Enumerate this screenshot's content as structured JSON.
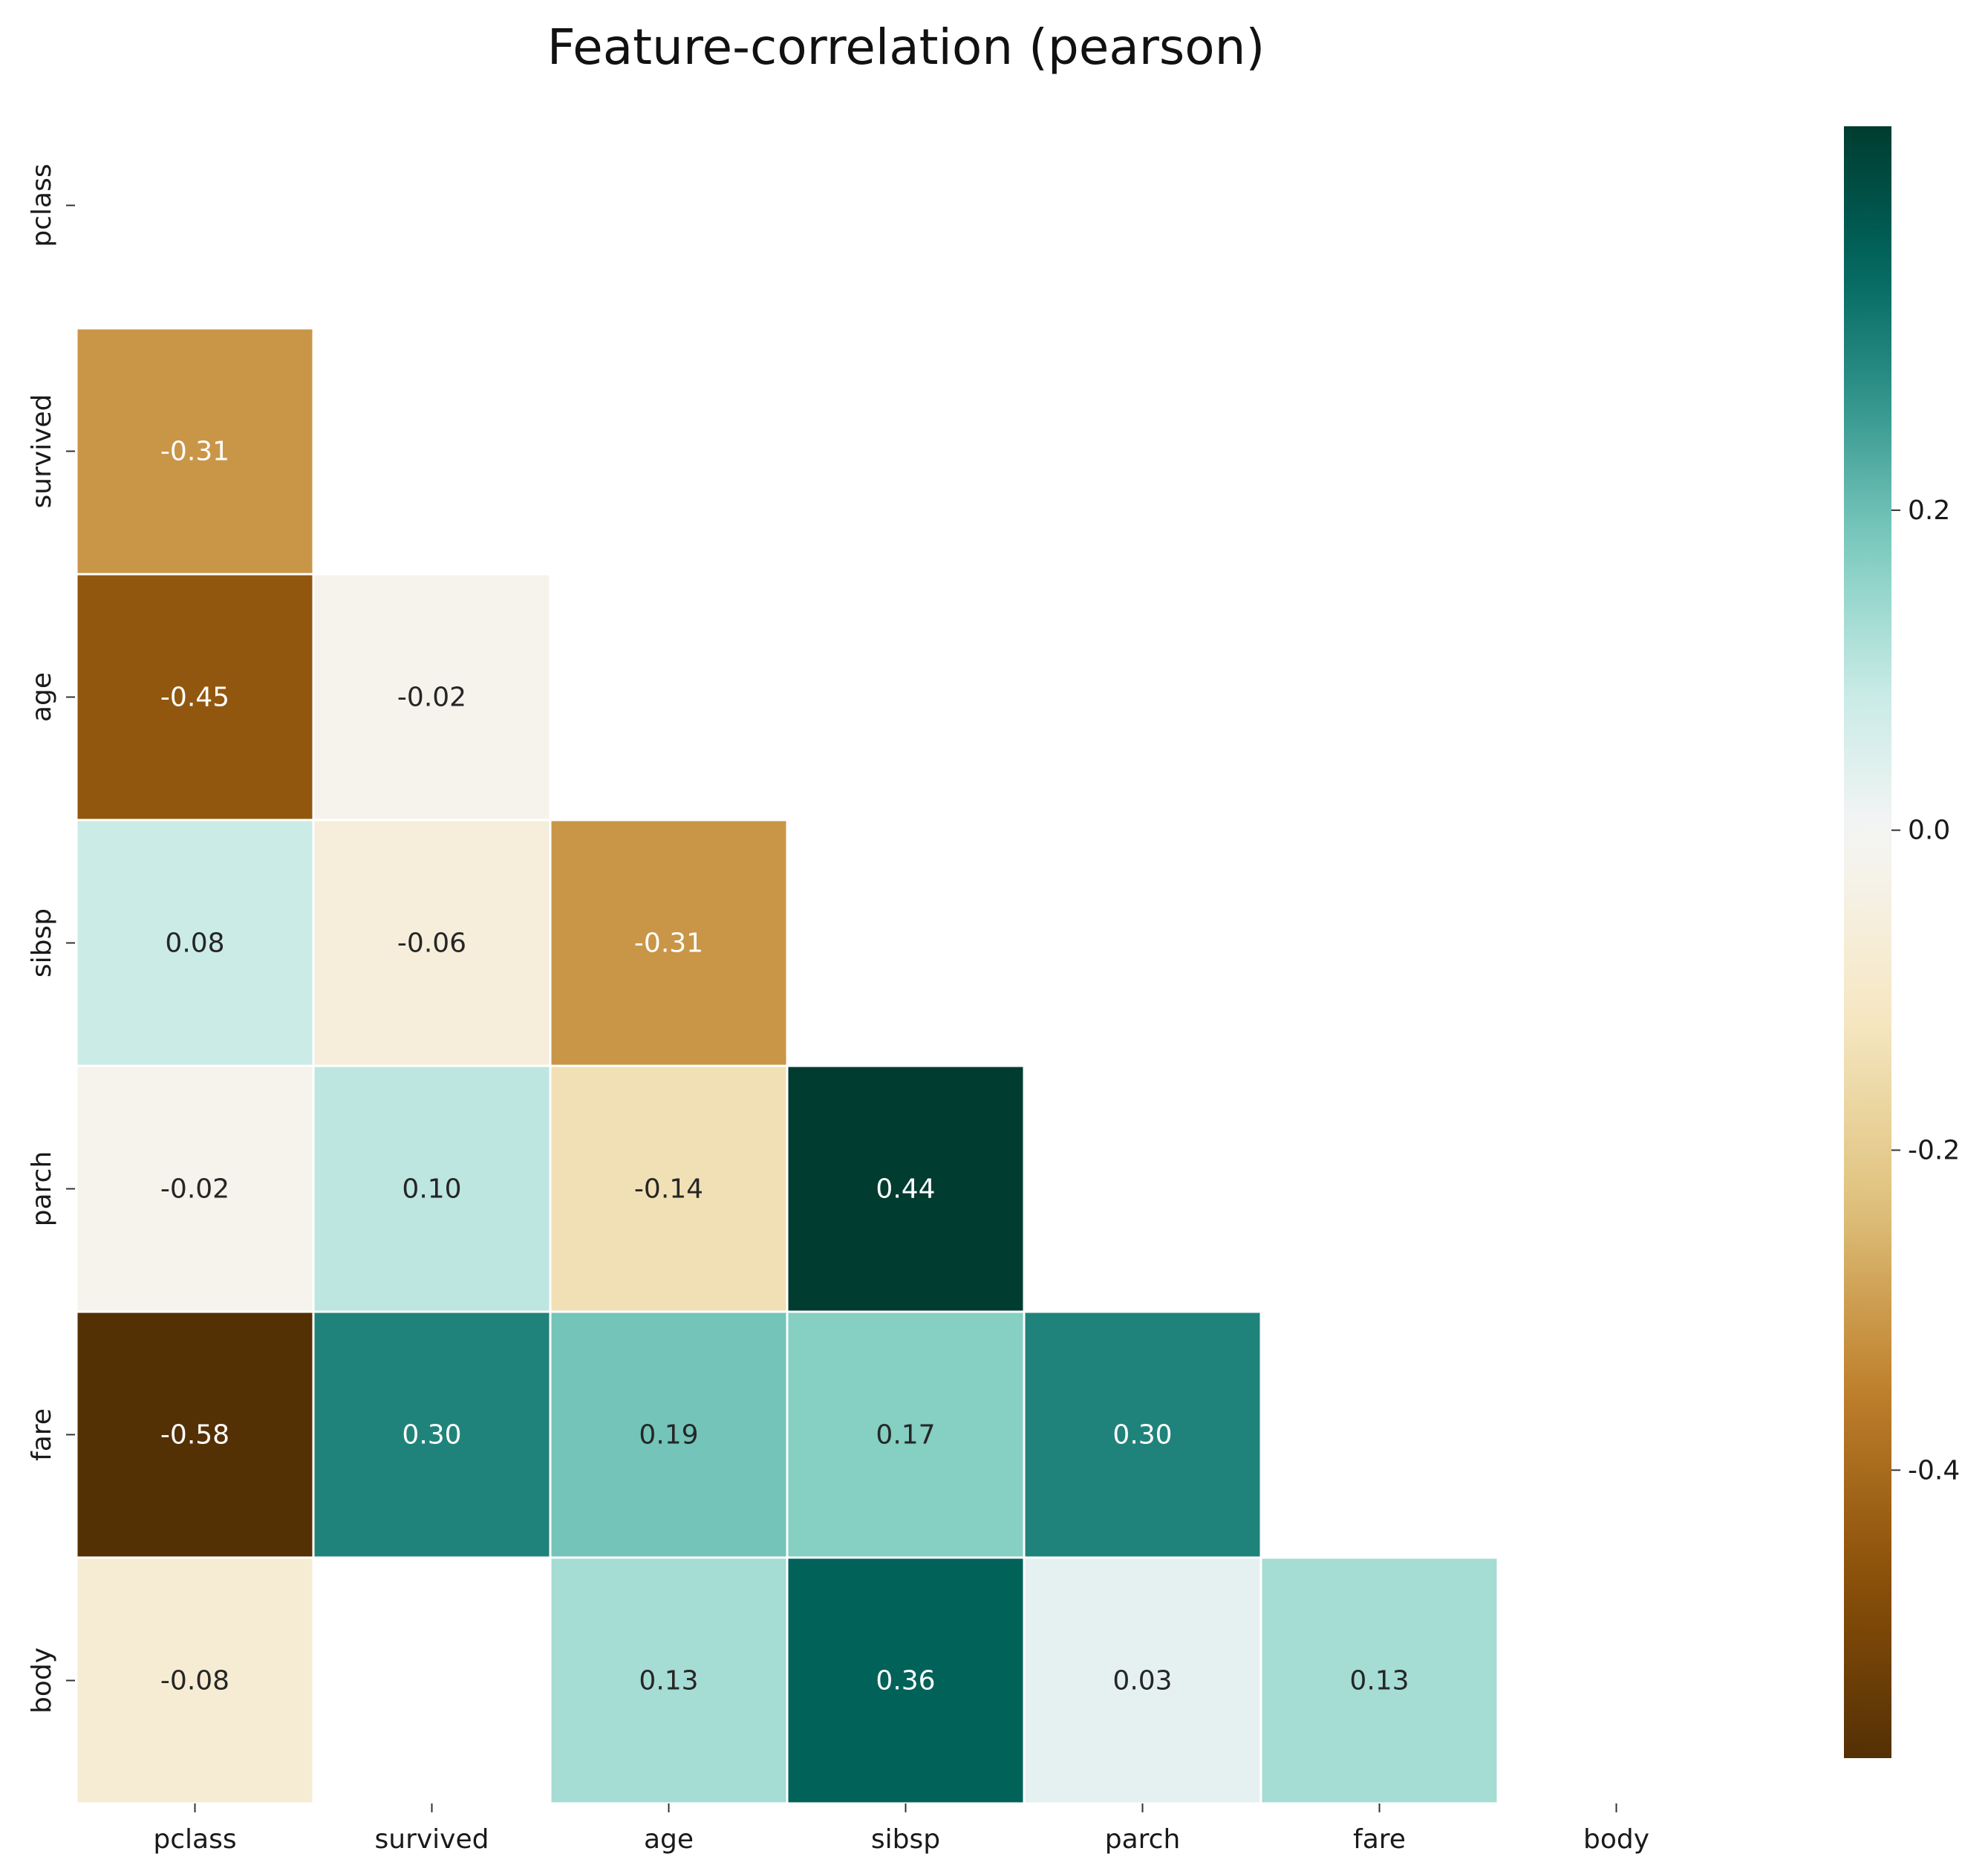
{
  "chart_data": {
    "type": "heatmap",
    "title": "Feature-correlation (pearson)",
    "xlabel": "",
    "ylabel": "",
    "variables": [
      "pclass",
      "survived",
      "age",
      "sibsp",
      "parch",
      "fare",
      "body"
    ],
    "mask": "upper-triangle including diagonal",
    "cells": [
      {
        "row": "survived",
        "col": "pclass",
        "value": -0.31,
        "label": "-0.31"
      },
      {
        "row": "age",
        "col": "pclass",
        "value": -0.45,
        "label": "-0.45"
      },
      {
        "row": "age",
        "col": "survived",
        "value": -0.02,
        "label": "-0.02"
      },
      {
        "row": "sibsp",
        "col": "pclass",
        "value": 0.08,
        "label": "0.08"
      },
      {
        "row": "sibsp",
        "col": "survived",
        "value": -0.06,
        "label": "-0.06"
      },
      {
        "row": "sibsp",
        "col": "age",
        "value": -0.31,
        "label": "-0.31"
      },
      {
        "row": "parch",
        "col": "pclass",
        "value": -0.02,
        "label": "-0.02"
      },
      {
        "row": "parch",
        "col": "survived",
        "value": 0.1,
        "label": "0.10"
      },
      {
        "row": "parch",
        "col": "age",
        "value": -0.14,
        "label": "-0.14"
      },
      {
        "row": "parch",
        "col": "sibsp",
        "value": 0.44,
        "label": "0.44"
      },
      {
        "row": "fare",
        "col": "pclass",
        "value": -0.58,
        "label": "-0.58"
      },
      {
        "row": "fare",
        "col": "survived",
        "value": 0.3,
        "label": "0.30"
      },
      {
        "row": "fare",
        "col": "age",
        "value": 0.19,
        "label": "0.19"
      },
      {
        "row": "fare",
        "col": "sibsp",
        "value": 0.17,
        "label": "0.17"
      },
      {
        "row": "fare",
        "col": "parch",
        "value": 0.3,
        "label": "0.30"
      },
      {
        "row": "body",
        "col": "pclass",
        "value": -0.08,
        "label": "-0.08"
      },
      {
        "row": "body",
        "col": "age",
        "value": 0.13,
        "label": "0.13"
      },
      {
        "row": "body",
        "col": "sibsp",
        "value": 0.36,
        "label": "0.36"
      },
      {
        "row": "body",
        "col": "parch",
        "value": 0.03,
        "label": "0.03"
      },
      {
        "row": "body",
        "col": "fare",
        "value": 0.13,
        "label": "0.13"
      }
    ],
    "colorbar": {
      "colormap": "BrBG",
      "range": [
        -0.58,
        0.44
      ],
      "ticks": [
        {
          "value": 0.2,
          "label": "0.2"
        },
        {
          "value": 0.0,
          "label": "0.0"
        },
        {
          "value": -0.2,
          "label": "-0.2"
        },
        {
          "value": -0.4,
          "label": "-0.4"
        }
      ]
    },
    "colors": {
      "cell_border": "#ffffff",
      "text_dark": "#262626",
      "text_light": "#ffffff",
      "stops": [
        "#543005",
        "#8c510a",
        "#bf812d",
        "#dfc27d",
        "#f6e8c3",
        "#f5f5f5",
        "#c7eae5",
        "#80cdc1",
        "#35978f",
        "#01665e",
        "#003c30"
      ]
    }
  }
}
